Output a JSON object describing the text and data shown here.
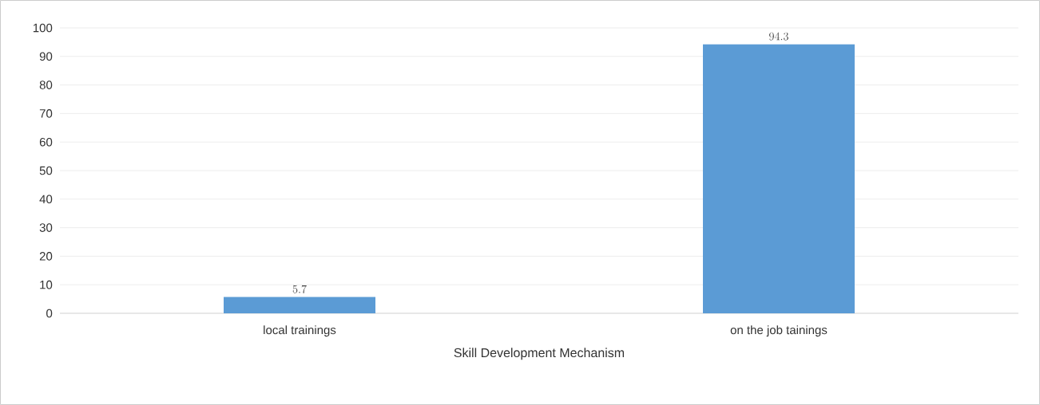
{
  "chart_data": {
    "type": "bar",
    "xlabel": "Skill Development  Mechanism",
    "categories": [
      "local trainings",
      "on the job tainings"
    ],
    "values": [
      5.7,
      94.3
    ],
    "color": "#5b9bd5",
    "ylim": [
      0,
      100
    ],
    "yticks": [
      0,
      10,
      20,
      30,
      40,
      50,
      60,
      70,
      80,
      90,
      100
    ],
    "grid": "y",
    "data_labels": true
  }
}
